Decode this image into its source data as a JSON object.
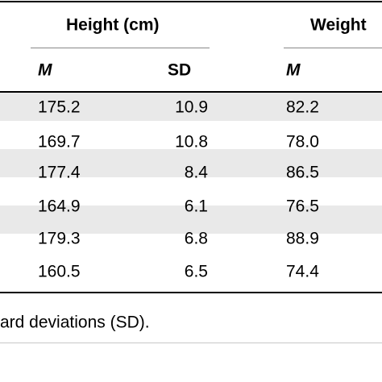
{
  "table": {
    "group_headers": {
      "height": "Height (cm)",
      "weight": "Weight"
    },
    "sub_headers": {
      "height_mean": "M",
      "height_sd": "SD",
      "weight_mean": "M"
    },
    "rows": [
      {
        "height_mean": "175.2",
        "height_sd": "10.9",
        "weight_mean": "82.2"
      },
      {
        "height_mean": "169.7",
        "height_sd": "10.8",
        "weight_mean": "78.0"
      },
      {
        "height_mean": "177.4",
        "height_sd": "8.4",
        "weight_mean": "86.5"
      },
      {
        "height_mean": "164.9",
        "height_sd": "6.1",
        "weight_mean": "76.5"
      },
      {
        "height_mean": "179.3",
        "height_sd": "6.8",
        "weight_mean": "88.9"
      },
      {
        "height_mean": "160.5",
        "height_sd": "6.5",
        "weight_mean": "74.4"
      }
    ],
    "footnote": "ard deviations (SD).",
    "colors": {
      "stripe": "#e9e9e9",
      "rule": "#000000",
      "thin_rule": "#c8c8c8"
    }
  }
}
